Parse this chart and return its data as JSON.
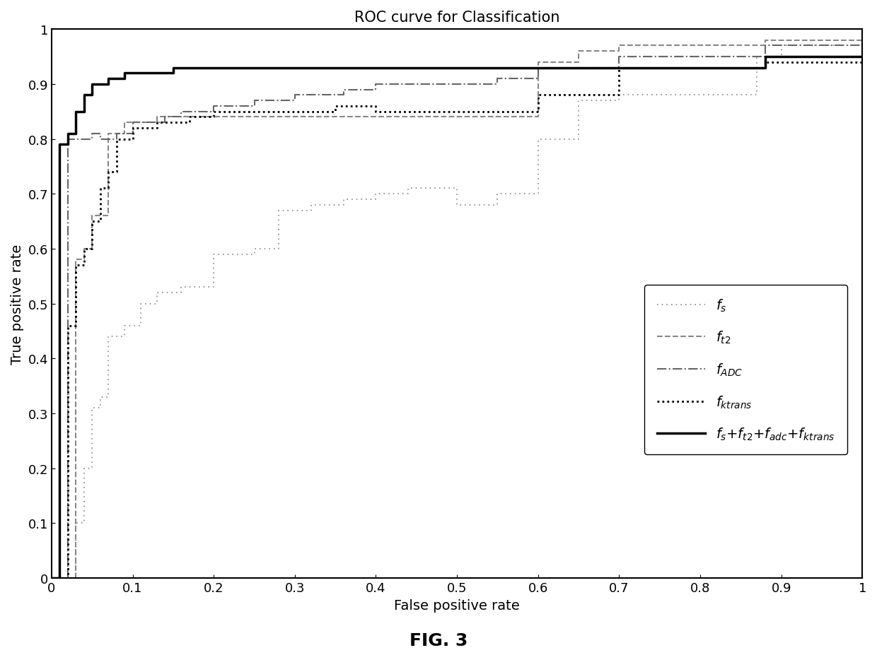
{
  "title": "ROC curve for Classification",
  "xlabel": "False positive rate",
  "ylabel": "True positive rate",
  "fig_label": "FIG. 3",
  "xlim": [
    0,
    1
  ],
  "ylim": [
    0,
    1
  ],
  "xticks": [
    0,
    0.1,
    0.2,
    0.3,
    0.4,
    0.5,
    0.6,
    0.7,
    0.8,
    0.9,
    1
  ],
  "yticks": [
    0,
    0.1,
    0.2,
    0.3,
    0.4,
    0.5,
    0.6,
    0.7,
    0.8,
    0.9,
    1
  ],
  "curves": {
    "fs": {
      "x": [
        0,
        0.03,
        0.03,
        0.04,
        0.04,
        0.05,
        0.05,
        0.06,
        0.06,
        0.07,
        0.07,
        0.09,
        0.09,
        0.11,
        0.11,
        0.13,
        0.13,
        0.16,
        0.16,
        0.2,
        0.2,
        0.25,
        0.25,
        0.28,
        0.28,
        0.32,
        0.32,
        0.36,
        0.36,
        0.4,
        0.4,
        0.44,
        0.44,
        0.5,
        0.5,
        0.55,
        0.55,
        0.6,
        0.6,
        0.65,
        0.65,
        0.7,
        0.7,
        0.87,
        0.87,
        0.9,
        0.9,
        1.0
      ],
      "y": [
        0,
        0,
        0.1,
        0.1,
        0.2,
        0.2,
        0.31,
        0.31,
        0.33,
        0.33,
        0.44,
        0.44,
        0.46,
        0.46,
        0.5,
        0.5,
        0.52,
        0.52,
        0.53,
        0.53,
        0.59,
        0.59,
        0.6,
        0.6,
        0.67,
        0.67,
        0.68,
        0.68,
        0.69,
        0.69,
        0.7,
        0.7,
        0.71,
        0.71,
        0.68,
        0.68,
        0.7,
        0.7,
        0.8,
        0.8,
        0.87,
        0.87,
        0.88,
        0.88,
        0.95,
        0.95,
        0.97,
        0.97
      ],
      "linestyle": "dotted_fine",
      "color": "#888888",
      "linewidth": 1.2
    },
    "ft2": {
      "x": [
        0,
        0.03,
        0.03,
        0.04,
        0.04,
        0.05,
        0.05,
        0.07,
        0.07,
        0.09,
        0.09,
        0.13,
        0.13,
        0.6,
        0.6,
        0.65,
        0.65,
        0.7,
        0.7,
        0.88,
        0.88,
        1.0
      ],
      "y": [
        0,
        0,
        0.58,
        0.58,
        0.6,
        0.6,
        0.66,
        0.66,
        0.81,
        0.81,
        0.83,
        0.83,
        0.84,
        0.84,
        0.94,
        0.94,
        0.96,
        0.96,
        0.97,
        0.97,
        0.98,
        0.98
      ],
      "linestyle": "--",
      "color": "#888888",
      "linewidth": 1.5
    },
    "fadc": {
      "x": [
        0,
        0.02,
        0.02,
        0.05,
        0.05,
        0.06,
        0.06,
        0.08,
        0.08,
        0.1,
        0.1,
        0.14,
        0.14,
        0.16,
        0.16,
        0.2,
        0.2,
        0.25,
        0.25,
        0.3,
        0.3,
        0.36,
        0.36,
        0.4,
        0.4,
        0.55,
        0.55,
        0.6,
        0.6,
        0.7,
        0.7,
        0.88,
        0.88,
        1.0
      ],
      "y": [
        0,
        0,
        0.8,
        0.8,
        0.81,
        0.81,
        0.8,
        0.8,
        0.81,
        0.81,
        0.83,
        0.83,
        0.84,
        0.84,
        0.85,
        0.85,
        0.86,
        0.86,
        0.87,
        0.87,
        0.88,
        0.88,
        0.89,
        0.89,
        0.9,
        0.9,
        0.91,
        0.91,
        0.93,
        0.93,
        0.95,
        0.95,
        0.97,
        0.97
      ],
      "linestyle": "-.",
      "color": "#666666",
      "linewidth": 1.5
    },
    "fktrans": {
      "x": [
        0,
        0.02,
        0.02,
        0.03,
        0.03,
        0.04,
        0.04,
        0.05,
        0.05,
        0.06,
        0.06,
        0.07,
        0.07,
        0.08,
        0.08,
        0.1,
        0.1,
        0.13,
        0.13,
        0.17,
        0.17,
        0.2,
        0.2,
        0.25,
        0.25,
        0.35,
        0.35,
        0.4,
        0.4,
        0.6,
        0.6,
        0.7,
        0.7,
        0.88,
        0.88,
        1.0
      ],
      "y": [
        0,
        0,
        0.46,
        0.46,
        0.57,
        0.57,
        0.6,
        0.6,
        0.65,
        0.65,
        0.71,
        0.71,
        0.74,
        0.74,
        0.8,
        0.8,
        0.82,
        0.82,
        0.83,
        0.83,
        0.84,
        0.84,
        0.85,
        0.85,
        0.85,
        0.85,
        0.86,
        0.86,
        0.85,
        0.85,
        0.88,
        0.88,
        0.93,
        0.93,
        0.94,
        0.94
      ],
      "linestyle": "dotted_bold",
      "color": "#000000",
      "linewidth": 2.0
    },
    "combined": {
      "x": [
        0,
        0.01,
        0.01,
        0.02,
        0.02,
        0.03,
        0.03,
        0.04,
        0.04,
        0.05,
        0.05,
        0.07,
        0.07,
        0.09,
        0.09,
        0.15,
        0.15,
        0.88,
        0.88,
        1.0
      ],
      "y": [
        0,
        0,
        0.79,
        0.79,
        0.81,
        0.81,
        0.85,
        0.85,
        0.88,
        0.88,
        0.9,
        0.9,
        0.91,
        0.91,
        0.92,
        0.92,
        0.93,
        0.93,
        0.95,
        0.95
      ],
      "linestyle": "-",
      "color": "#000000",
      "linewidth": 2.5
    }
  },
  "background_color": "#ffffff",
  "title_fontsize": 15,
  "label_fontsize": 14,
  "tick_fontsize": 13,
  "fig_label_fontsize": 18,
  "legend_fontsize": 14
}
